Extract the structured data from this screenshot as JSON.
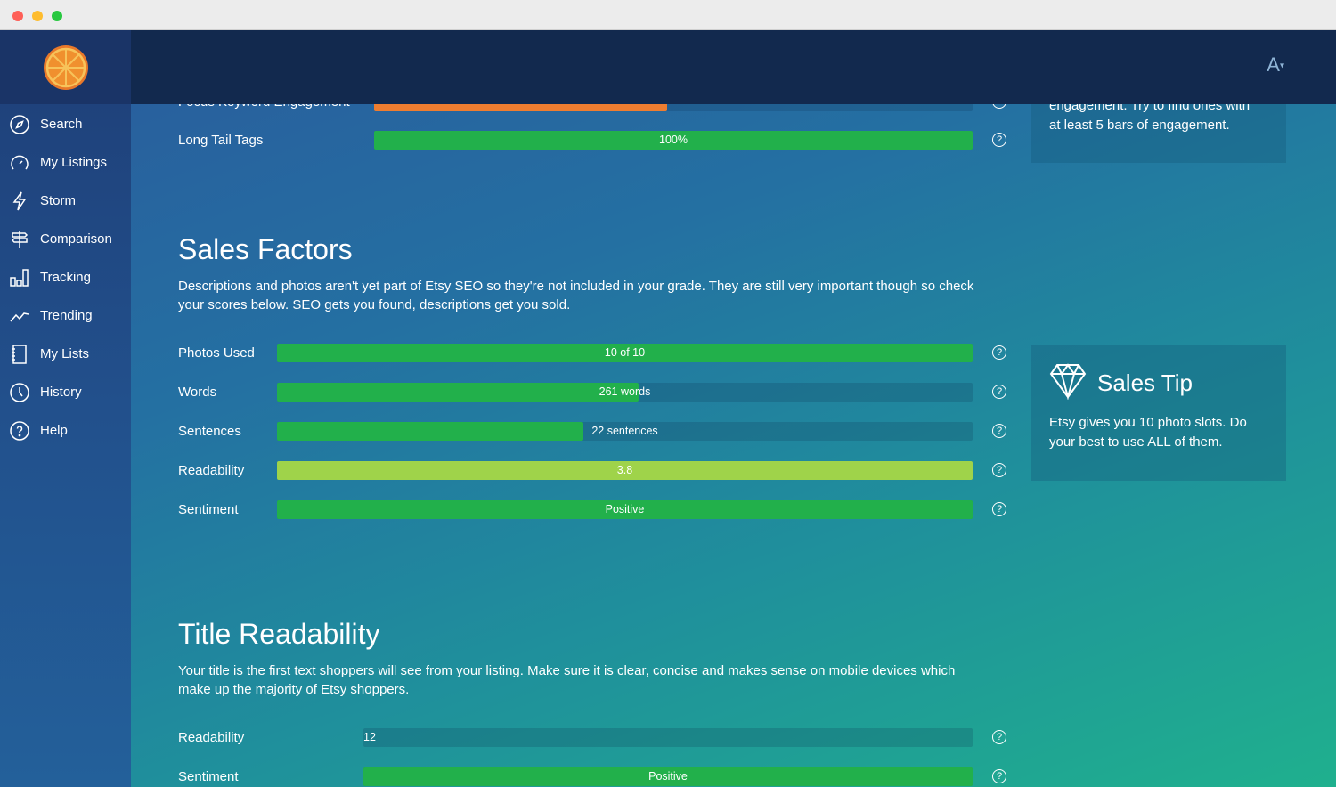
{
  "window": {
    "controls": [
      "close",
      "minimize",
      "maximize"
    ]
  },
  "header": {
    "font_size_button": "A",
    "font_size_caret": "▾"
  },
  "sidebar": {
    "logo": "orange-slice-logo",
    "items": [
      {
        "label": "Search",
        "icon": "compass-icon"
      },
      {
        "label": "My Listings",
        "icon": "gauge-icon"
      },
      {
        "label": "Storm",
        "icon": "lightning-icon"
      },
      {
        "label": "Comparison",
        "icon": "signpost-icon"
      },
      {
        "label": "Tracking",
        "icon": "bar-chart-icon"
      },
      {
        "label": "Trending",
        "icon": "trend-line-icon"
      },
      {
        "label": "My Lists",
        "icon": "notebook-icon"
      },
      {
        "label": "History",
        "icon": "clock-icon"
      },
      {
        "label": "Help",
        "icon": "question-circle-icon"
      }
    ]
  },
  "colors": {
    "green": "#22b04b",
    "lime": "#9fd34a",
    "orange": "#ee7d30"
  },
  "top": {
    "rows": [
      {
        "label": "Focus Keyword Engagement",
        "value": "",
        "fill": 0.49,
        "color": "#ee7d30"
      },
      {
        "label": "Long Tail Tags",
        "value": "100%",
        "fill": 1.0,
        "color": "#22b04b"
      }
    ],
    "tip": {
      "text_line1": "engagement. Try to find ones with",
      "text_line2": "at least 5 bars of engagement."
    }
  },
  "sales": {
    "title": "Sales Factors",
    "description": "Descriptions and photos aren't yet part of Etsy SEO so they're not included in your grade. They are still very important though so check your scores below. SEO gets you found, descriptions get you sold.",
    "rows": [
      {
        "label": "Photos Used",
        "value": "10 of 10",
        "fill": 1.0,
        "color": "#22b04b"
      },
      {
        "label": "Words",
        "value": "261 words",
        "fill": 0.52,
        "color": "#22b04b"
      },
      {
        "label": "Sentences",
        "value": "22 sentences",
        "fill": 0.44,
        "color": "#22b04b"
      },
      {
        "label": "Readability",
        "value": "3.8",
        "fill": 1.0,
        "color": "#9fd34a"
      },
      {
        "label": "Sentiment",
        "value": "Positive",
        "fill": 1.0,
        "color": "#22b04b"
      }
    ],
    "tip": {
      "title": "Sales Tip",
      "icon": "diamond-icon",
      "text": "Etsy gives you 10 photo slots. Do your best to use ALL of them."
    }
  },
  "title_readability": {
    "title": "Title Readability",
    "description": "Your title is the first text shoppers will see from your listing. Make sure it is clear, concise and makes sense on mobile devices which make up the majority of Etsy shoppers.",
    "rows": [
      {
        "label": "Readability",
        "value": "12",
        "fill": 0,
        "color": "#22b04b"
      },
      {
        "label": "Sentiment",
        "value": "Positive",
        "fill": 1.0,
        "color": "#22b04b"
      }
    ]
  },
  "help_glyph": "?"
}
